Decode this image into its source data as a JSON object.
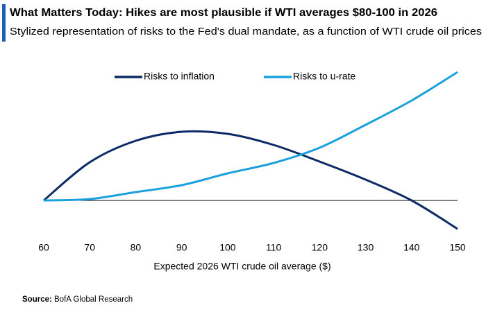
{
  "chart_data": {
    "type": "line",
    "title": "What Matters Today: Hikes are most plausible if WTI averages $80-100 in 2026",
    "subtitle": "Stylized representation of risks to the Fed's dual mandate, as a function of WTI crude oil prices",
    "x_label": "Expected 2026 WTI crude oil average ($)",
    "source_label": "Source:",
    "source": "BofA Global Research",
    "x": [
      60,
      70,
      80,
      90,
      100,
      110,
      120,
      130,
      140,
      150
    ],
    "series": [
      {
        "name": "Risks to inflation",
        "color": "#0b2a66",
        "values": [
          0,
          55,
          86,
          99,
          96,
          80,
          56,
          30,
          0,
          -41
        ]
      },
      {
        "name": "Risks to u-rate",
        "color": "#1aa0dc",
        "values": [
          0,
          2,
          12,
          22,
          39,
          54,
          76,
          109,
          144,
          185
        ]
      }
    ],
    "xlim": [
      60,
      150
    ],
    "xticks": [
      60,
      70,
      80,
      90,
      100,
      110,
      120,
      130,
      140,
      150
    ],
    "ylim": [
      -50,
      200
    ],
    "legend": "top"
  }
}
